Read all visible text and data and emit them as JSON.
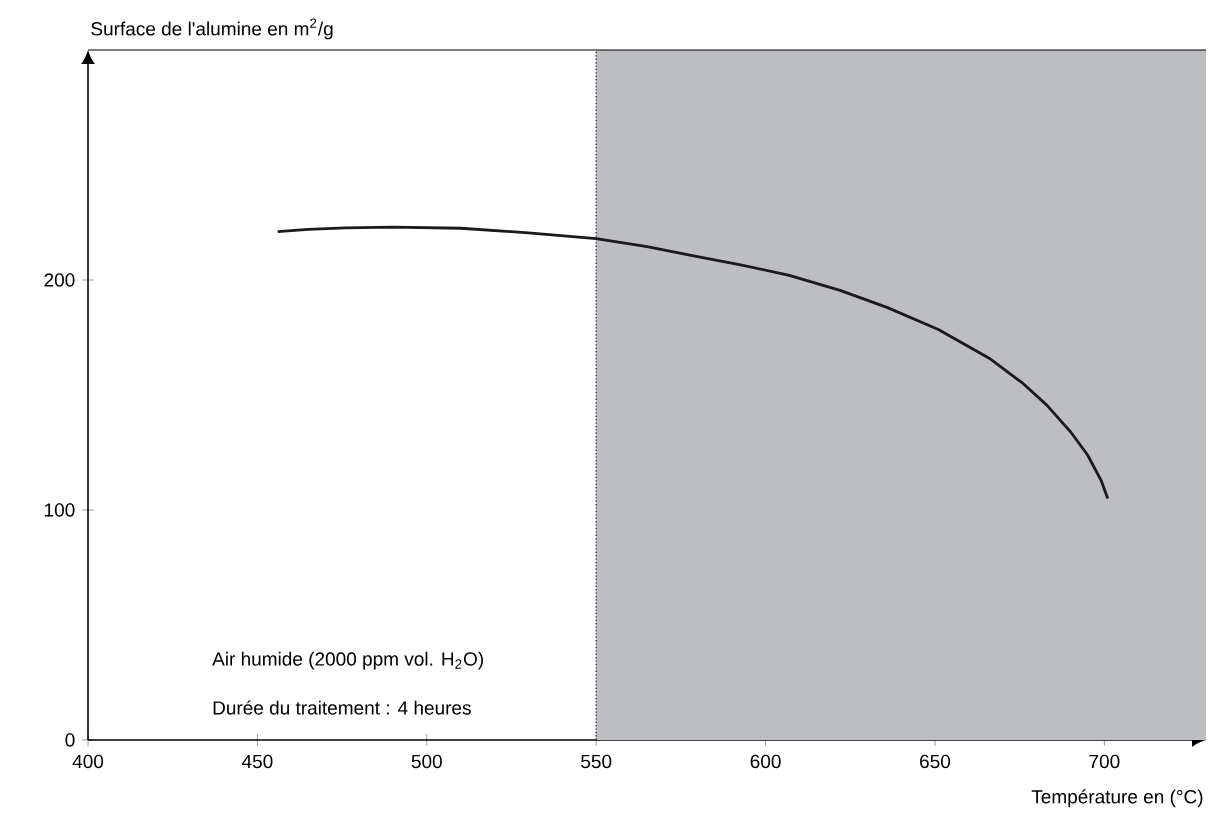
{
  "chart_data": {
    "type": "line",
    "xlabel": "Température en (°C)",
    "ylabel": "Surface de l'alumine en m$^{2}$/g",
    "x": [
      456,
      465,
      476,
      490,
      510,
      530,
      550,
      565,
      578,
      593,
      607,
      622,
      636,
      651,
      666,
      676,
      683,
      690,
      695,
      699,
      701
    ],
    "series": [
      {
        "color": "#1a1a1a",
        "values": [
          221,
          222,
          222.7,
          223,
          222.5,
          220.5,
          218,
          214.5,
          210.7,
          206.5,
          202,
          195.5,
          188,
          178.5,
          166,
          155,
          145.6,
          134,
          124,
          113,
          105
        ]
      }
    ],
    "xlim": [
      400,
      730
    ],
    "ylim": [
      0,
      300
    ],
    "xticks": [
      400,
      450,
      500,
      550,
      600,
      650,
      700
    ],
    "yticks": [
      0,
      100,
      200
    ],
    "ref_lines": [
      {
        "axis": "x",
        "value": 550,
        "color": "#333333",
        "line_style": "dotted"
      }
    ],
    "bands": [
      {
        "axis": "x",
        "from": 550,
        "to": 730,
        "color": "#bdbec2"
      }
    ],
    "annotations": [
      "Air humide (2000 ppm vol. H$_{2}$O)",
      "Durée du traitement : 4 heures"
    ]
  }
}
